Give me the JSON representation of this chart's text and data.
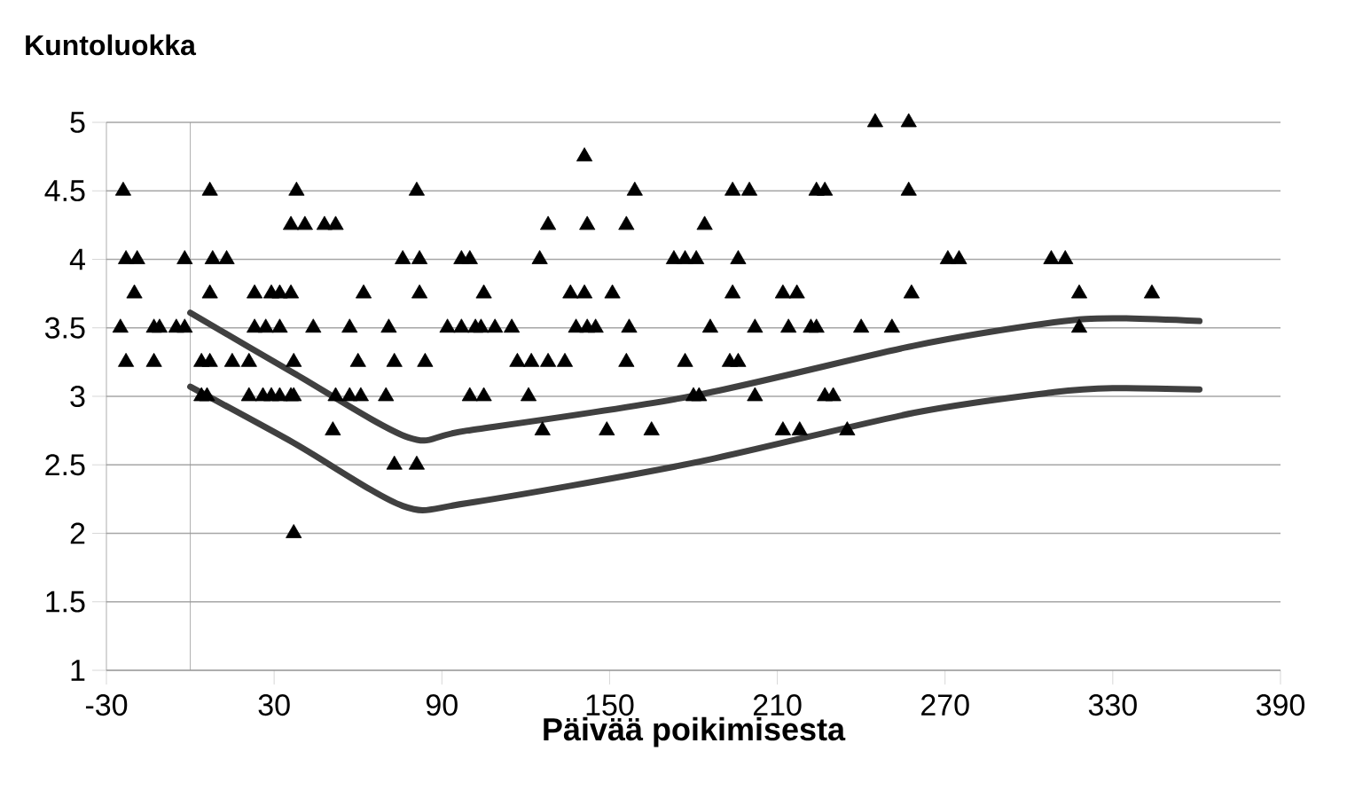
{
  "chart_data": {
    "type": "scatter",
    "ylabel": "Kuntoluokka",
    "xlabel": "Päivää poikimisesta",
    "xlim": [
      -30,
      390
    ],
    "ylim": [
      1,
      5
    ],
    "xticks": [
      -30,
      30,
      90,
      150,
      210,
      270,
      330,
      390
    ],
    "yticks": [
      1,
      1.5,
      2,
      2.5,
      3,
      3.5,
      4,
      4.5,
      5
    ],
    "grid": "y",
    "marker": "triangle",
    "series": [
      {
        "color": "#000000",
        "x": [
          245,
          257,
          141,
          -24,
          7,
          38,
          81,
          159,
          194,
          200,
          224,
          227,
          257,
          36,
          41,
          48,
          52,
          128,
          142,
          156,
          184,
          -23,
          -19,
          -2,
          8,
          13,
          76,
          82,
          97,
          100,
          125,
          173,
          177,
          181,
          196,
          271,
          275,
          308,
          313,
          -20,
          7,
          23,
          29,
          32,
          36,
          62,
          82,
          105,
          136,
          141,
          151,
          194,
          212,
          217,
          258,
          318,
          344,
          -25,
          -13,
          -11,
          -5,
          -2,
          23,
          27,
          32,
          44,
          57,
          71,
          92,
          97,
          102,
          104,
          109,
          115,
          138,
          142,
          145,
          157,
          186,
          202,
          214,
          222,
          224,
          240,
          251,
          318,
          -23,
          -13,
          4,
          7,
          15,
          21,
          37,
          60,
          73,
          84,
          117,
          122,
          128,
          134,
          156,
          177,
          193,
          196,
          4,
          6,
          21,
          26,
          29,
          32,
          36,
          37,
          52,
          57,
          61,
          70,
          100,
          105,
          121,
          180,
          182,
          202,
          227,
          230,
          51,
          126,
          149,
          165,
          212,
          218,
          235,
          73,
          81,
          37
        ],
        "values": [
          5,
          5,
          4.75,
          4.5,
          4.5,
          4.5,
          4.5,
          4.5,
          4.5,
          4.5,
          4.5,
          4.5,
          4.5,
          4.25,
          4.25,
          4.25,
          4.25,
          4.25,
          4.25,
          4.25,
          4.25,
          4,
          4,
          4,
          4,
          4,
          4,
          4,
          4,
          4,
          4,
          4,
          4,
          4,
          4,
          4,
          4,
          4,
          4,
          3.75,
          3.75,
          3.75,
          3.75,
          3.75,
          3.75,
          3.75,
          3.75,
          3.75,
          3.75,
          3.75,
          3.75,
          3.75,
          3.75,
          3.75,
          3.75,
          3.75,
          3.75,
          3.5,
          3.5,
          3.5,
          3.5,
          3.5,
          3.5,
          3.5,
          3.5,
          3.5,
          3.5,
          3.5,
          3.5,
          3.5,
          3.5,
          3.5,
          3.5,
          3.5,
          3.5,
          3.5,
          3.5,
          3.5,
          3.5,
          3.5,
          3.5,
          3.5,
          3.5,
          3.5,
          3.5,
          3.5,
          3.25,
          3.25,
          3.25,
          3.25,
          3.25,
          3.25,
          3.25,
          3.25,
          3.25,
          3.25,
          3.25,
          3.25,
          3.25,
          3.25,
          3.25,
          3.25,
          3.25,
          3.25,
          3,
          3,
          3,
          3,
          3,
          3,
          3,
          3,
          3,
          3,
          3,
          3,
          3,
          3,
          3,
          3,
          3,
          3,
          3,
          3,
          2.75,
          2.75,
          2.75,
          2.75,
          2.75,
          2.75,
          2.75,
          2.5,
          2.5,
          2
        ]
      },
      {
        "type": "line",
        "marker": "none",
        "color": "#404040",
        "x": [
          0,
          37,
          78,
          99,
          179,
          259,
          309,
          330,
          361
        ],
        "values": [
          3.61,
          3.17,
          2.7,
          2.75,
          3.0,
          3.37,
          3.54,
          3.57,
          3.55
        ]
      },
      {
        "type": "line",
        "marker": "none",
        "color": "#404040",
        "x": [
          0,
          37,
          76,
          99,
          179,
          259,
          309,
          330,
          361
        ],
        "values": [
          3.07,
          2.66,
          2.2,
          2.22,
          2.51,
          2.88,
          3.03,
          3.06,
          3.05
        ]
      }
    ]
  }
}
